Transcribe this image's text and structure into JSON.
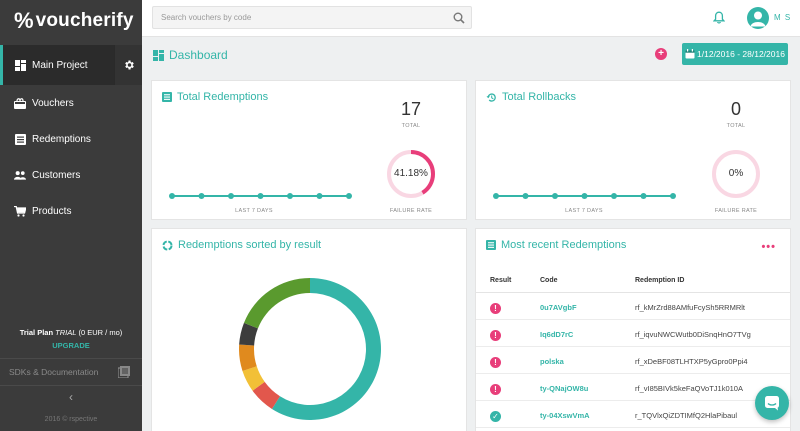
{
  "app": {
    "logo_mark": "%",
    "logo_text": "voucherify"
  },
  "sidebar": {
    "items": [
      {
        "label": "Main Project",
        "icon": "dashboard-icon",
        "active": true
      },
      {
        "label": "Vouchers",
        "icon": "vouchers-icon"
      },
      {
        "label": "Redemptions",
        "icon": "list-icon"
      },
      {
        "label": "Customers",
        "icon": "customers-icon"
      },
      {
        "label": "Products",
        "icon": "cart-icon"
      }
    ],
    "plan_label": "Trial Plan",
    "plan_type": "TRIAL",
    "plan_price": "(0 EUR / mo)",
    "upgrade_label": "UPGRADE",
    "sdk_label": "SDKs & Documentation",
    "collapse_glyph": "‹",
    "copyright": "2016 © rspective"
  },
  "topbar": {
    "search_placeholder": "Search vouchers by code",
    "user_initials": "M S"
  },
  "subheader": {
    "title": "Dashboard",
    "add_glyph": "+",
    "date_range": "1/12/2016 - 28/12/2016"
  },
  "colors": {
    "accent": "#34b5a8",
    "pink": "#e83e7a",
    "sidebar_bg": "#3b3b3b"
  },
  "total_redemptions": {
    "title": "Total Redemptions",
    "total": "17",
    "total_label": "TOTAL",
    "period_label": "LAST 7 DAYS",
    "failure_rate": "41.18%",
    "failure_fraction": 0.4118,
    "failure_label": "FAILURE RATE",
    "sparkline_points": 7
  },
  "total_rollbacks": {
    "title": "Total Rollbacks",
    "total": "0",
    "total_label": "TOTAL",
    "period_label": "LAST 7 DAYS",
    "failure_rate": "0%",
    "failure_fraction": 0,
    "failure_label": "FAILURE RATE",
    "sparkline_points": 7
  },
  "redemptions_by_result": {
    "title": "Redemptions sorted by result",
    "segments": [
      {
        "color": "#34b5a8",
        "value": 0.59
      },
      {
        "color": "#e2574c",
        "value": 0.06
      },
      {
        "color": "#f2c037",
        "value": 0.05
      },
      {
        "color": "#e08a1e",
        "value": 0.06
      },
      {
        "color": "#3d3d3d",
        "value": 0.05
      },
      {
        "color": "#5a9a2e",
        "value": 0.19
      }
    ]
  },
  "recent_redemptions": {
    "title": "Most recent Redemptions",
    "more_glyph": "•••",
    "columns": {
      "result": "Result",
      "code": "Code",
      "rid": "Redemption ID"
    },
    "rows": [
      {
        "status": "failure",
        "code": "0u7AVgbF",
        "rid": "rf_kMrZrd88AMfuFcySh5RRMRlt"
      },
      {
        "status": "failure",
        "code": "Iq6dD7rC",
        "rid": "rf_iqvuNWCWutb0DiSnqHnO7TVg"
      },
      {
        "status": "failure",
        "code": "polska",
        "rid": "rf_xDeBF08TLHTXP5yGpro0Ppi4"
      },
      {
        "status": "failure",
        "code": "ty-QNajOW8u",
        "rid": "rf_vI85BIVk5keFaQVoTJ1k010A"
      },
      {
        "status": "success",
        "code": "ty-04XswVmA",
        "rid": "r_TQVlxQiZDTIMfQ2HlaPibaul"
      }
    ]
  }
}
